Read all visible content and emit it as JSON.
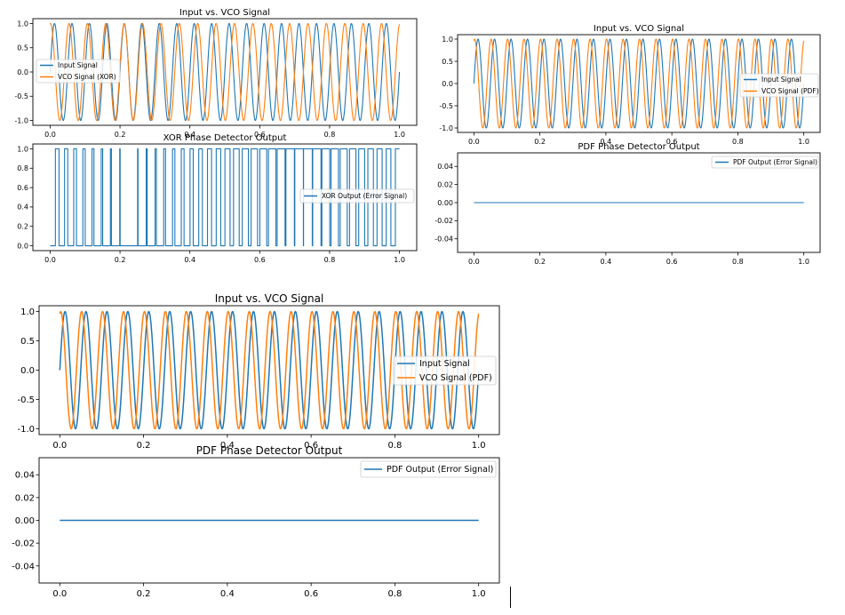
{
  "colors": {
    "input": "#1f77b4",
    "vco": "#ff7f0e",
    "axes": "#000000",
    "background": "#ffffff"
  },
  "chart_data": [
    {
      "id": "a1",
      "type": "line",
      "title": "Input vs. VCO Signal",
      "xlabel": "",
      "ylabel": "",
      "xlim": [
        0,
        1
      ],
      "ylim": [
        -1.1,
        1.1
      ],
      "xticks": [
        "0.0",
        "0.2",
        "0.4",
        "0.6",
        "0.8",
        "1.0"
      ],
      "yticks": [
        "1.0",
        "0.5",
        "0.0",
        "-0.5",
        "-1.0"
      ],
      "series": [
        {
          "name": "Input Signal",
          "kind": "sine",
          "freq": 20,
          "phase": 0,
          "color": "#1f77b4"
        },
        {
          "name": "VCO Signal (XOR)",
          "kind": "sine",
          "freq": 19,
          "phase": 1.4,
          "color": "#ff7f0e"
        }
      ],
      "legend": "center-left",
      "grid": false
    },
    {
      "id": "a2",
      "type": "line",
      "title": "XOR Phase Detector Output",
      "xlim": [
        0,
        1
      ],
      "ylim": [
        -0.05,
        1.05
      ],
      "xticks": [
        "0.0",
        "0.2",
        "0.4",
        "0.6",
        "0.8",
        "1.0"
      ],
      "yticks": [
        "1.0",
        "0.8",
        "0.6",
        "0.4",
        "0.2",
        "0.0"
      ],
      "series": [
        {
          "name": "XOR Output (Error Signal)",
          "kind": "xor",
          "freq1": 20,
          "freq2": 19,
          "phase": 1.4,
          "color": "#1f77b4"
        }
      ],
      "legend": "center-right",
      "grid": false
    },
    {
      "id": "b1",
      "type": "line",
      "title": "Input vs. VCO Signal",
      "xlim": [
        0,
        1
      ],
      "ylim": [
        -1.1,
        1.1
      ],
      "xticks": [
        "0.0",
        "0.2",
        "0.4",
        "0.6",
        "0.8",
        "1.0"
      ],
      "yticks": [
        "1.0",
        "0.5",
        "0.0",
        "-0.5",
        "-1.0"
      ],
      "series": [
        {
          "name": "Input Signal",
          "kind": "sine",
          "freq": 20,
          "phase": 0,
          "color": "#1f77b4"
        },
        {
          "name": "VCO Signal (PDF)",
          "kind": "sine",
          "freq": 20,
          "phase": 1.3,
          "color": "#ff7f0e"
        }
      ],
      "legend": "center-right",
      "grid": false
    },
    {
      "id": "b2",
      "type": "line",
      "title": "PDF Phase Detector Output",
      "xlim": [
        0,
        1
      ],
      "ylim": [
        -0.055,
        0.055
      ],
      "xticks": [
        "0.0",
        "0.2",
        "0.4",
        "0.6",
        "0.8",
        "1.0"
      ],
      "yticks": [
        "0.04",
        "0.02",
        "0.00",
        "-0.02",
        "-0.04"
      ],
      "series": [
        {
          "name": "PDF Output (Error Signal)",
          "kind": "zero",
          "color": "#1f77b4"
        }
      ],
      "legend": "upper-right",
      "grid": false
    },
    {
      "id": "c1",
      "type": "line",
      "title": "Input vs. VCO Signal",
      "xlim": [
        0,
        1
      ],
      "ylim": [
        -1.1,
        1.1
      ],
      "xticks": [
        "0.0",
        "0.2",
        "0.4",
        "0.6",
        "0.8",
        "1.0"
      ],
      "yticks": [
        "1.0",
        "0.5",
        "0.0",
        "-0.5",
        "-1.0"
      ],
      "series": [
        {
          "name": "Input Signal",
          "kind": "sine",
          "freq": 20,
          "phase": 0,
          "color": "#1f77b4"
        },
        {
          "name": "VCO Signal (PDF)",
          "kind": "sine",
          "freq": 20,
          "phase": 1.3,
          "color": "#ff7f0e"
        }
      ],
      "legend": "center-right",
      "grid": false
    },
    {
      "id": "c2",
      "type": "line",
      "title": "PDF Phase Detector Output",
      "xlim": [
        0,
        1
      ],
      "ylim": [
        -0.055,
        0.055
      ],
      "xticks": [
        "0.0",
        "0.2",
        "0.4",
        "0.6",
        "0.8",
        "1.0"
      ],
      "yticks": [
        "0.04",
        "0.02",
        "0.00",
        "-0.02",
        "-0.04"
      ],
      "series": [
        {
          "name": "PDF Output (Error Signal)",
          "kind": "zero",
          "color": "#1f77b4"
        }
      ],
      "legend": "upper-right",
      "grid": false
    }
  ]
}
